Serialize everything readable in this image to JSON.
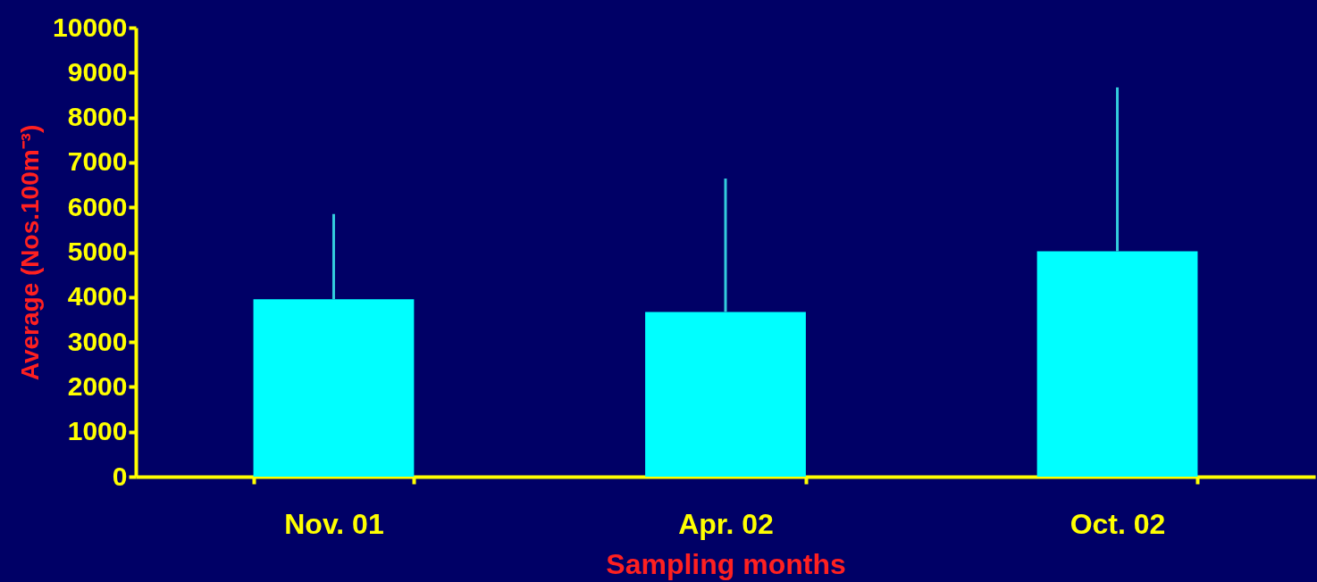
{
  "chart_data": {
    "type": "bar",
    "xlabel": "Sampling months",
    "ylabel": "Average (Nos.100m⁻³)",
    "categories": [
      "Nov. 01",
      "Apr. 02",
      "Oct. 02"
    ],
    "values": [
      3950,
      3670,
      5020
    ],
    "errors": [
      [
        3950,
        5850
      ],
      [
        3670,
        6640
      ],
      [
        5020,
        8670
      ]
    ],
    "color": "#00ffff",
    "ylim": [
      0,
      10000
    ],
    "yticks": [
      0,
      1000,
      2000,
      3000,
      4000,
      5000,
      6000,
      7000,
      8000,
      9000,
      10000
    ],
    "grid": false
  }
}
